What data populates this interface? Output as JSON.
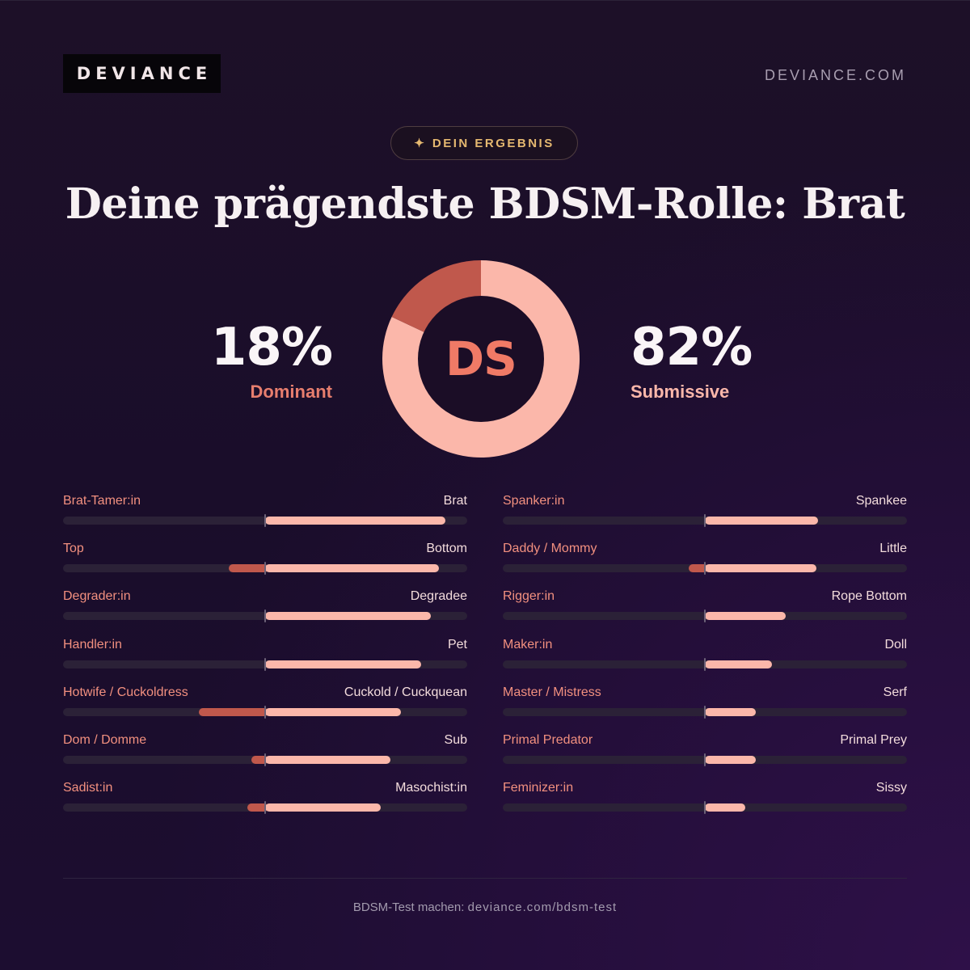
{
  "brand": {
    "logo": "DEVIANCE",
    "site": "DEVIANCE.COM"
  },
  "badge": {
    "icon": "sparkle-icon",
    "label": "DEIN ERGEBNIS"
  },
  "title": "Deine prägendste BDSM-Rolle: Brat",
  "summary": {
    "dominant": {
      "value": "18%",
      "label": "Dominant",
      "fraction": 0.18
    },
    "submissive": {
      "value": "82%",
      "label": "Submissive",
      "fraction": 0.82
    },
    "center_label": "DS",
    "colors": {
      "dominant": "#c0584c",
      "submissive": "#fbb7aa",
      "center": "#1b0d26",
      "center_text": "#f07a66"
    }
  },
  "scales_left": [
    {
      "left": "Brat-Tamer:in",
      "right": "Brat",
      "dom": 0,
      "sub": 0.89
    },
    {
      "left": "Top",
      "right": "Bottom",
      "dom": 0.18,
      "sub": 0.86
    },
    {
      "left": "Degrader:in",
      "right": "Degradee",
      "dom": 0,
      "sub": 0.82
    },
    {
      "left": "Handler:in",
      "right": "Pet",
      "dom": 0,
      "sub": 0.77
    },
    {
      "left": "Hotwife / Cuckoldress",
      "right": "Cuckold / Cuckquean",
      "dom": 0.33,
      "sub": 0.67
    },
    {
      "left": "Dom / Domme",
      "right": "Sub",
      "dom": 0.07,
      "sub": 0.62
    },
    {
      "left": "Sadist:in",
      "right": "Masochist:in",
      "dom": 0.09,
      "sub": 0.57
    }
  ],
  "scales_right": [
    {
      "left": "Spanker:in",
      "right": "Spankee",
      "dom": 0,
      "sub": 0.56
    },
    {
      "left": "Daddy / Mommy",
      "right": "Little",
      "dom": 0.08,
      "sub": 0.55
    },
    {
      "left": "Rigger:in",
      "right": "Rope Bottom",
      "dom": 0,
      "sub": 0.4
    },
    {
      "left": "Maker:in",
      "right": "Doll",
      "dom": 0,
      "sub": 0.33
    },
    {
      "left": "Master / Mistress",
      "right": "Serf",
      "dom": 0,
      "sub": 0.25
    },
    {
      "left": "Primal Predator",
      "right": "Primal Prey",
      "dom": 0,
      "sub": 0.25
    },
    {
      "left": "Feminizer:in",
      "right": "Sissy",
      "dom": 0,
      "sub": 0.2
    }
  ],
  "footer": {
    "prefix": "BDSM-Test machen:",
    "url": "deviance.com/bdsm-test"
  }
}
